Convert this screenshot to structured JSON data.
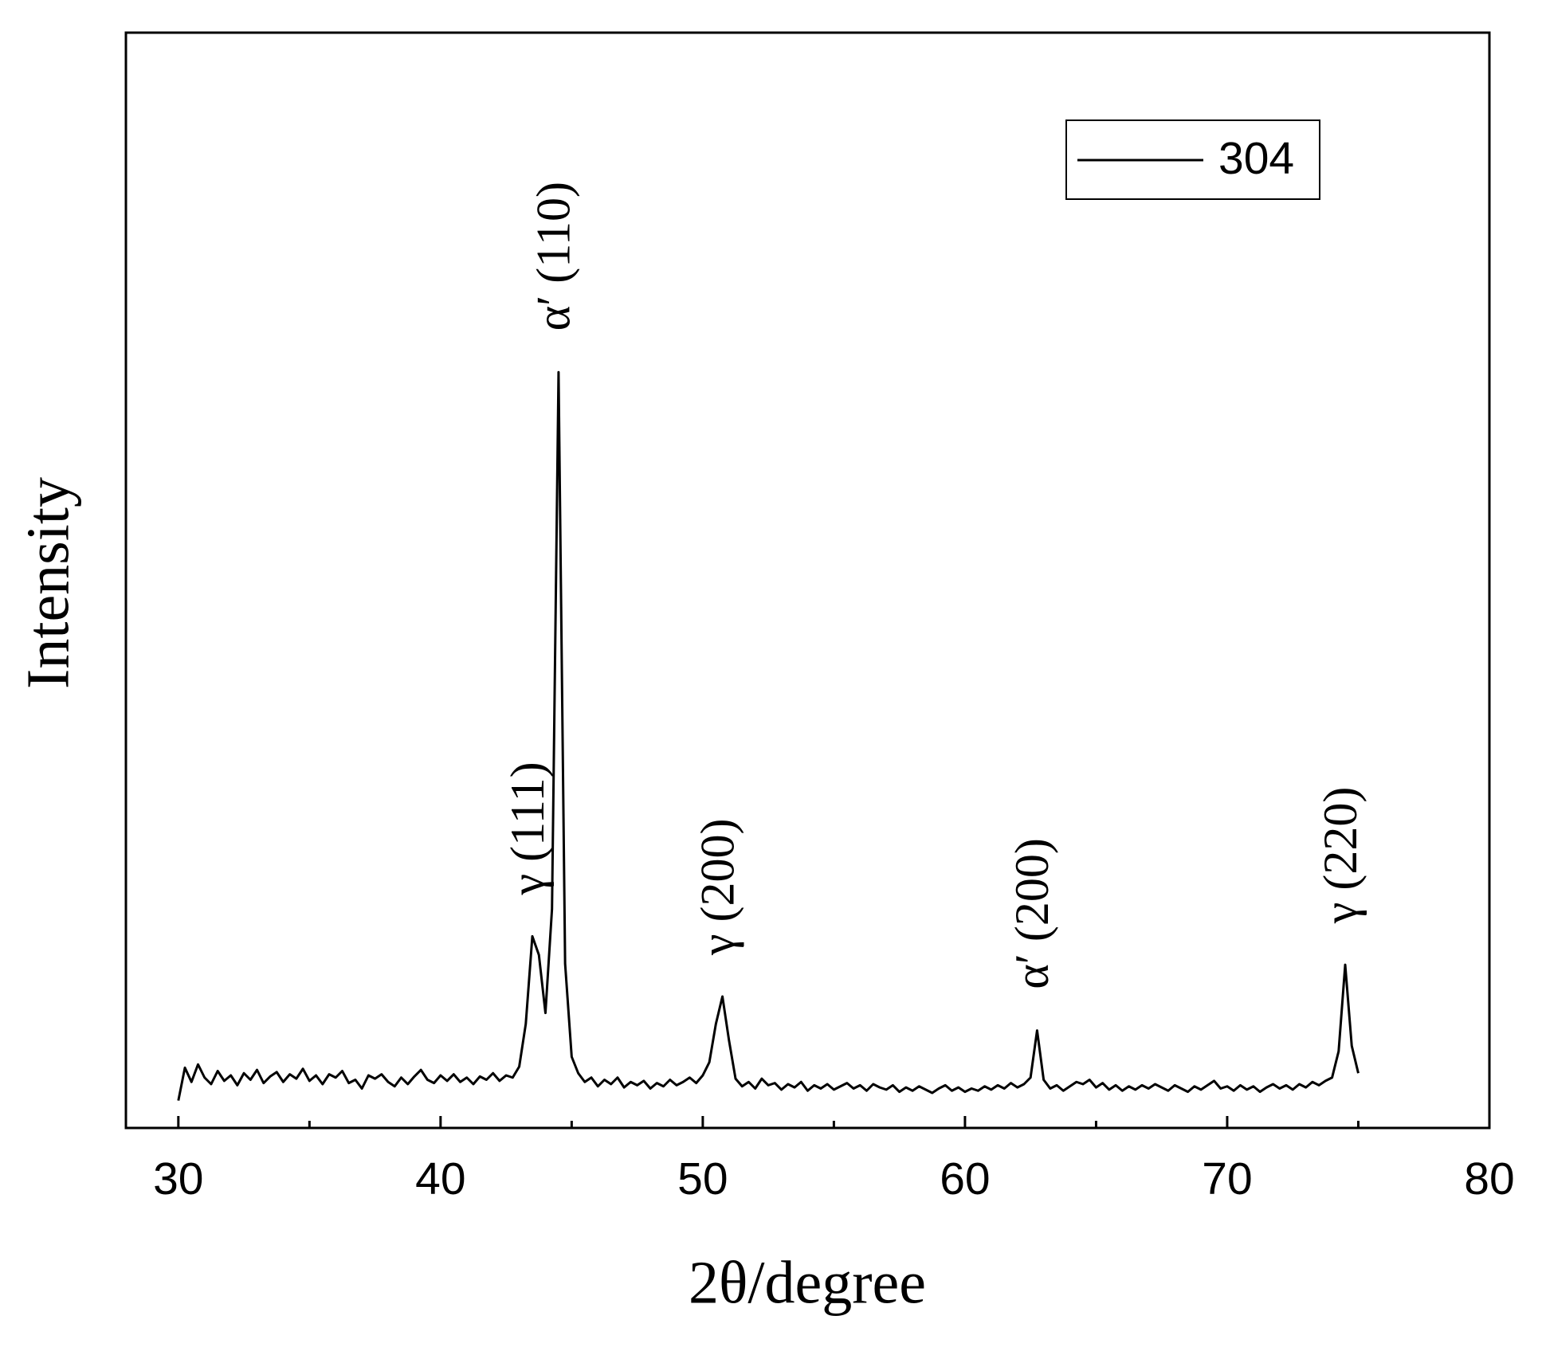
{
  "chart_data": {
    "type": "line",
    "xlabel": "2θ/degree",
    "ylabel": "Intensity",
    "xlim": [
      28,
      80
    ],
    "xticks": [
      30,
      40,
      50,
      60,
      70,
      80
    ],
    "xminorticks": [
      35,
      45,
      55,
      65,
      75
    ],
    "ylim": [
      0,
      100
    ],
    "legend": "upper right",
    "annotations": [
      {
        "text": "γ (111)",
        "x": 43.5
      },
      {
        "text": "α′ (110)",
        "x": 44.5
      },
      {
        "text": "γ (200)",
        "x": 50.75
      },
      {
        "text": "α′ (200)",
        "x": 62.75
      },
      {
        "text": "γ (220)",
        "x": 74.5
      }
    ],
    "x": [
      30,
      30.25,
      30.5,
      30.75,
      31,
      31.25,
      31.5,
      31.75,
      32,
      32.25,
      32.5,
      32.75,
      33,
      33.25,
      33.5,
      33.75,
      34,
      34.25,
      34.5,
      34.75,
      35,
      35.25,
      35.5,
      35.75,
      36,
      36.25,
      36.5,
      36.75,
      37,
      37.25,
      37.5,
      37.75,
      38,
      38.25,
      38.5,
      38.75,
      39,
      39.25,
      39.5,
      39.75,
      40,
      40.25,
      40.5,
      40.75,
      41,
      41.25,
      41.5,
      41.75,
      42,
      42.25,
      42.5,
      42.75,
      43,
      43.25,
      43.5,
      43.75,
      44,
      44.25,
      44.5,
      44.75,
      45,
      45.25,
      45.5,
      45.75,
      46,
      46.25,
      46.5,
      46.75,
      47,
      47.25,
      47.5,
      47.75,
      48,
      48.25,
      48.5,
      48.75,
      49,
      49.25,
      49.5,
      49.75,
      50,
      50.25,
      50.5,
      50.75,
      51,
      51.25,
      51.5,
      51.75,
      52,
      52.25,
      52.5,
      52.75,
      53,
      53.25,
      53.5,
      53.75,
      54,
      54.25,
      54.5,
      54.75,
      55,
      55.25,
      55.5,
      55.75,
      56,
      56.25,
      56.5,
      56.75,
      57,
      57.25,
      57.5,
      57.75,
      58,
      58.25,
      58.5,
      58.75,
      59,
      59.25,
      59.5,
      59.75,
      60,
      60.25,
      60.5,
      60.75,
      61,
      61.25,
      61.5,
      61.75,
      62,
      62.25,
      62.5,
      62.75,
      63,
      63.25,
      63.5,
      63.75,
      64,
      64.25,
      64.5,
      64.75,
      65,
      65.25,
      65.5,
      65.75,
      66,
      66.25,
      66.5,
      66.75,
      67,
      67.25,
      67.5,
      67.75,
      68,
      68.25,
      68.5,
      68.75,
      69,
      69.25,
      69.5,
      69.75,
      70,
      70.25,
      70.5,
      70.75,
      71,
      71.25,
      71.5,
      71.75,
      72,
      72.25,
      72.5,
      72.75,
      73,
      73.25,
      73.5,
      73.75,
      74,
      74.25,
      74.5,
      74.75,
      75
    ],
    "series": [
      {
        "name": "304",
        "color": "#000000",
        "values": [
          2.5,
          5.5,
          4.2,
          5.8,
          4.6,
          4.0,
          5.2,
          4.3,
          4.8,
          3.9,
          5.0,
          4.4,
          5.3,
          4.1,
          4.7,
          5.1,
          4.2,
          4.9,
          4.5,
          5.4,
          4.3,
          4.8,
          4.0,
          4.9,
          4.6,
          5.2,
          4.1,
          4.4,
          3.6,
          4.8,
          4.5,
          4.9,
          4.2,
          3.8,
          4.6,
          4.0,
          4.7,
          5.3,
          4.4,
          4.1,
          4.8,
          4.3,
          4.9,
          4.2,
          4.6,
          4.0,
          4.7,
          4.4,
          5.0,
          4.3,
          4.8,
          4.6,
          5.6,
          9.5,
          17.5,
          15.8,
          10.5,
          20,
          69,
          15,
          6.5,
          5.0,
          4.2,
          4.6,
          3.8,
          4.4,
          4.0,
          4.6,
          3.7,
          4.2,
          3.9,
          4.3,
          3.6,
          4.1,
          3.8,
          4.4,
          3.9,
          4.2,
          4.6,
          4.1,
          4.8,
          6.0,
          9.5,
          12.0,
          8.0,
          4.5,
          3.8,
          4.2,
          3.6,
          4.5,
          3.9,
          4.1,
          3.5,
          4.0,
          3.7,
          4.2,
          3.4,
          3.9,
          3.6,
          4.0,
          3.5,
          3.8,
          4.1,
          3.6,
          3.9,
          3.4,
          4.0,
          3.7,
          3.5,
          3.9,
          3.3,
          3.7,
          3.4,
          3.8,
          3.5,
          3.2,
          3.6,
          3.9,
          3.4,
          3.7,
          3.3,
          3.6,
          3.4,
          3.8,
          3.5,
          3.9,
          3.6,
          4.1,
          3.7,
          4.0,
          4.6,
          8.9,
          4.4,
          3.6,
          3.9,
          3.4,
          3.8,
          4.2,
          4.0,
          4.4,
          3.7,
          4.1,
          3.5,
          3.9,
          3.4,
          3.8,
          3.5,
          3.9,
          3.6,
          4.0,
          3.7,
          3.4,
          3.9,
          3.6,
          3.3,
          3.8,
          3.5,
          3.9,
          4.3,
          3.6,
          3.8,
          3.4,
          3.9,
          3.5,
          3.8,
          3.3,
          3.7,
          4.0,
          3.6,
          3.9,
          3.5,
          4.0,
          3.7,
          4.2,
          3.9,
          4.3,
          4.6,
          7.0,
          14.9,
          7.5,
          5.0
        ]
      }
    ]
  }
}
